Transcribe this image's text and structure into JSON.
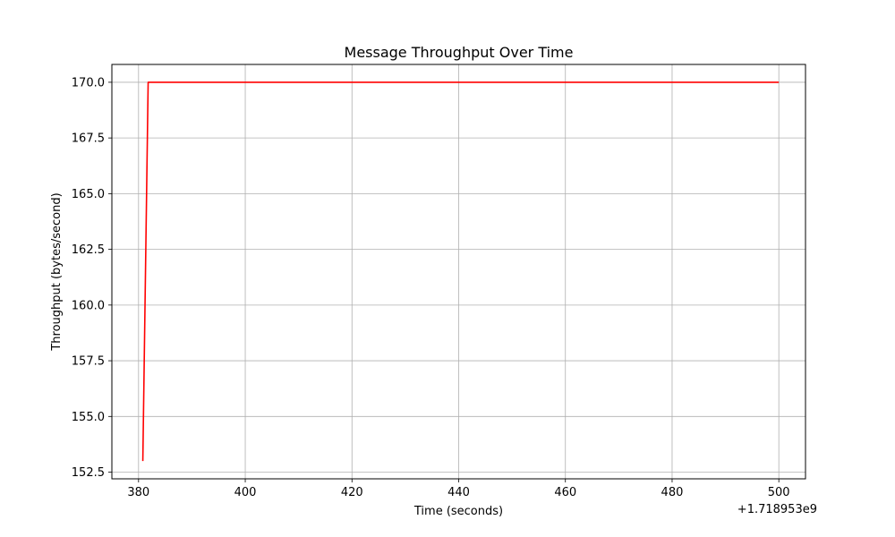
{
  "chart_data": {
    "type": "line",
    "title": "Message Throughput Over Time",
    "xlabel": "Time (seconds)",
    "ylabel": "Throughput (bytes/second)",
    "x_offset_label": "+1.718953e9",
    "xlim": [
      375,
      505
    ],
    "ylim": [
      152.2,
      170.8
    ],
    "x_ticks": [
      380,
      400,
      420,
      440,
      460,
      480,
      500
    ],
    "x_tick_labels": [
      "380",
      "400",
      "420",
      "440",
      "460",
      "480",
      "500"
    ],
    "y_ticks": [
      152.5,
      155.0,
      157.5,
      160.0,
      162.5,
      165.0,
      167.5,
      170.0
    ],
    "y_tick_labels": [
      "152.5",
      "155.0",
      "157.5",
      "160.0",
      "162.5",
      "165.0",
      "167.5",
      "170.0"
    ],
    "grid": true,
    "series": [
      {
        "color": "#ff0000",
        "x": [
          380.8,
          381.8,
          500.0
        ],
        "y": [
          153.0,
          170.0,
          170.0
        ]
      }
    ]
  }
}
